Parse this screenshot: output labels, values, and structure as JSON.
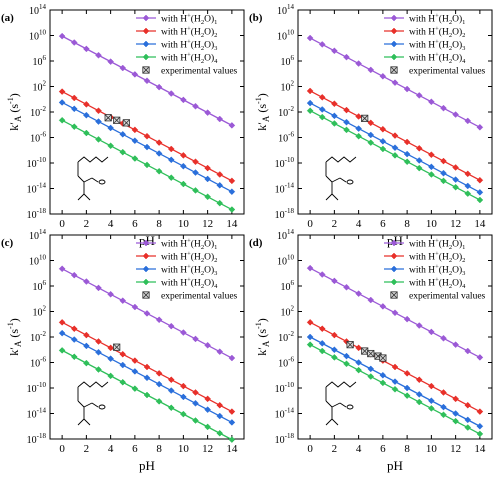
{
  "figure": {
    "shared_xlabel": "pH",
    "shared_ylabel": "k'A (s⁻¹)",
    "series_colors": [
      "#9b59d6",
      "#e8302a",
      "#2a6fdb",
      "#2fbf5a"
    ],
    "experimental_color": "#555555"
  },
  "chart_data": [
    {
      "type": "line",
      "panel_label": "(a)",
      "xlabel": "pH",
      "ylabel": "k'A (s⁻¹)",
      "yscale": "log",
      "xlim": [
        -1,
        15
      ],
      "ylim": [
        1e-18,
        100000000000000.0
      ],
      "x_ticks": [
        0,
        2,
        4,
        6,
        8,
        10,
        12,
        14
      ],
      "y_ticks": [
        -18,
        -14,
        -10,
        -6,
        -2,
        2,
        6,
        10,
        14
      ],
      "x": [
        0,
        1,
        2,
        3,
        4,
        5,
        6,
        7,
        8,
        9,
        10,
        11,
        12,
        13,
        14
      ],
      "series": [
        {
          "name": "with H⁺(H₂O)₁",
          "log10_start": 9.9,
          "log10_slope": -1.0
        },
        {
          "name": "with H⁺(H₂O)₂",
          "log10_start": 1.2,
          "log10_slope": -1.0
        },
        {
          "name": "with H⁺(H₂O)₃",
          "log10_start": -0.5,
          "log10_slope": -1.0
        },
        {
          "name": "with H⁺(H₂O)₄",
          "log10_start": -3.3,
          "log10_slope": -1.0
        }
      ],
      "experimental": {
        "name": "experimental values",
        "x": [
          3.8,
          4.5,
          5.3
        ],
        "log10_y": [
          -2.9,
          -3.3,
          -3.7
        ]
      },
      "legend_position": "top-right",
      "grid": false
    },
    {
      "type": "line",
      "panel_label": "(b)",
      "xlabel": "pH",
      "ylabel": "k'A (s⁻¹)",
      "yscale": "log",
      "xlim": [
        -1,
        15
      ],
      "ylim": [
        1e-18,
        100000000000000.0
      ],
      "x_ticks": [
        0,
        2,
        4,
        6,
        8,
        10,
        12,
        14
      ],
      "y_ticks": [
        -18,
        -14,
        -10,
        -6,
        -2,
        2,
        6,
        10,
        14
      ],
      "x": [
        0,
        1,
        2,
        3,
        4,
        5,
        6,
        7,
        8,
        9,
        10,
        11,
        12,
        13,
        14
      ],
      "series": [
        {
          "name": "with H⁺(H₂O)₁",
          "log10_start": 9.6,
          "log10_slope": -1.0
        },
        {
          "name": "with H⁺(H₂O)₂",
          "log10_start": 1.3,
          "log10_slope": -1.0
        },
        {
          "name": "with H⁺(H₂O)₃",
          "log10_start": -0.6,
          "log10_slope": -1.0
        },
        {
          "name": "with H⁺(H₂O)₄",
          "log10_start": -1.8,
          "log10_slope": -1.0
        }
      ],
      "experimental": {
        "name": "experimental values",
        "x": [
          4.5
        ],
        "log10_y": [
          -3.0
        ]
      },
      "legend_position": "top-right",
      "grid": false
    },
    {
      "type": "line",
      "panel_label": "(c)",
      "xlabel": "pH",
      "ylabel": "k'A (s⁻¹)",
      "yscale": "log",
      "xlim": [
        -1,
        15
      ],
      "ylim": [
        1e-18,
        100000000000000.0
      ],
      "x_ticks": [
        0,
        2,
        4,
        6,
        8,
        10,
        12,
        14
      ],
      "y_ticks": [
        -18,
        -14,
        -10,
        -6,
        -2,
        2,
        6,
        10,
        14
      ],
      "x": [
        0,
        1,
        2,
        3,
        4,
        5,
        6,
        7,
        8,
        9,
        10,
        11,
        12,
        13,
        14
      ],
      "series": [
        {
          "name": "with H⁺(H₂O)₁",
          "log10_start": 8.7,
          "log10_slope": -1.0
        },
        {
          "name": "with H⁺(H₂O)₂",
          "log10_start": 0.3,
          "log10_slope": -1.0
        },
        {
          "name": "with H⁺(H₂O)₃",
          "log10_start": -1.4,
          "log10_slope": -1.0
        },
        {
          "name": "with H⁺(H₂O)₄",
          "log10_start": -4.1,
          "log10_slope": -1.0
        }
      ],
      "experimental": {
        "name": "experimental values",
        "x": [
          4.5
        ],
        "log10_y": [
          -3.6
        ]
      },
      "legend_position": "top-right",
      "grid": false
    },
    {
      "type": "line",
      "panel_label": "(d)",
      "xlabel": "pH",
      "ylabel": "k'A (s⁻¹)",
      "yscale": "log",
      "xlim": [
        -1,
        15
      ],
      "ylim": [
        1e-18,
        100000000000000.0
      ],
      "x_ticks": [
        0,
        2,
        4,
        6,
        8,
        10,
        12,
        14
      ],
      "y_ticks": [
        -18,
        -14,
        -10,
        -6,
        -2,
        2,
        6,
        10,
        14
      ],
      "x": [
        0,
        1,
        2,
        3,
        4,
        5,
        6,
        7,
        8,
        9,
        10,
        11,
        12,
        13,
        14
      ],
      "series": [
        {
          "name": "with H⁺(H₂O)₁",
          "log10_start": 8.8,
          "log10_slope": -1.0
        },
        {
          "name": "with H⁺(H₂O)₂",
          "log10_start": 0.3,
          "log10_slope": -1.0
        },
        {
          "name": "with H⁺(H₂O)₃",
          "log10_start": -2.0,
          "log10_slope": -1.0
        },
        {
          "name": "with H⁺(H₂O)₄",
          "log10_start": -3.2,
          "log10_slope": -1.0
        }
      ],
      "experimental": {
        "name": "experimental values",
        "x": [
          3.3,
          4.5,
          5.0,
          5.6,
          6.0
        ],
        "log10_y": [
          -3.2,
          -4.2,
          -4.6,
          -5.0,
          -5.3
        ]
      },
      "legend_position": "top-right",
      "grid": false
    }
  ]
}
